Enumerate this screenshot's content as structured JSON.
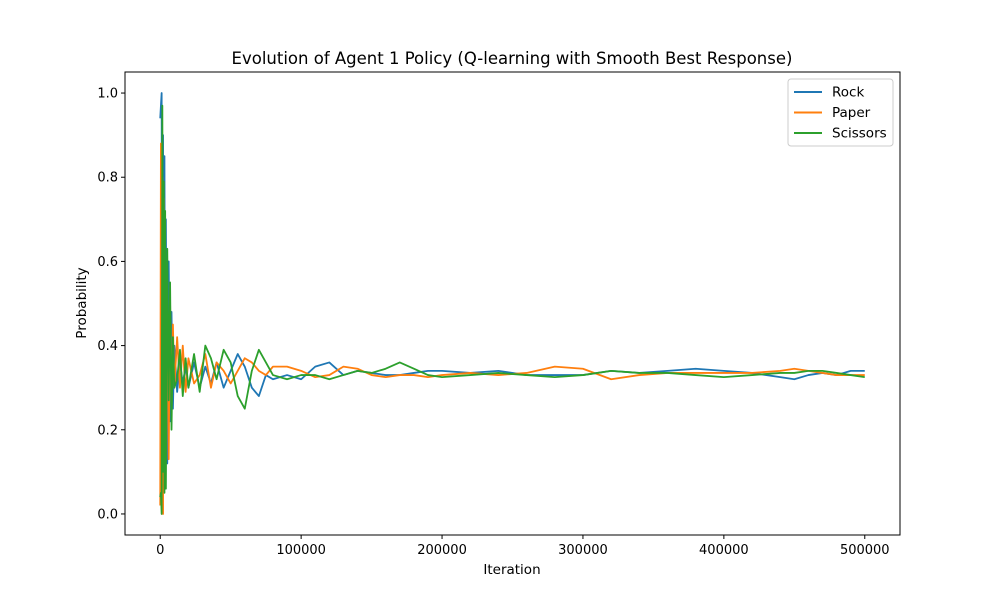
{
  "chart_data": {
    "type": "line",
    "title": "Evolution of Agent 1 Policy (Q-learning with Smooth Best Response)",
    "xlabel": "Iteration",
    "ylabel": "Probability",
    "xlim": [
      -25000,
      525000
    ],
    "ylim": [
      -0.05,
      1.05
    ],
    "xticks": [
      0,
      100000,
      200000,
      300000,
      400000,
      500000
    ],
    "xtick_labels": [
      "0",
      "100000",
      "200000",
      "300000",
      "400000",
      "500000"
    ],
    "yticks": [
      0.0,
      0.2,
      0.4,
      0.6,
      0.8,
      1.0
    ],
    "ytick_labels": [
      "0.0",
      "0.2",
      "0.4",
      "0.6",
      "0.8",
      "1.0"
    ],
    "grid": false,
    "legend": "top-right",
    "series": [
      {
        "name": "Rock",
        "color": "#1f77b4",
        "x": [
          0,
          500,
          1000,
          1500,
          2000,
          2500,
          3000,
          3500,
          4000,
          5000,
          6000,
          7000,
          8000,
          9000,
          10000,
          12000,
          14000,
          16000,
          18000,
          20000,
          24000,
          28000,
          32000,
          36000,
          40000,
          45000,
          50000,
          55000,
          60000,
          65000,
          70000,
          75000,
          80000,
          90000,
          100000,
          110000,
          120000,
          130000,
          140000,
          150000,
          160000,
          170000,
          180000,
          190000,
          200000,
          220000,
          240000,
          260000,
          280000,
          300000,
          320000,
          340000,
          360000,
          380000,
          400000,
          420000,
          440000,
          450000,
          460000,
          470000,
          480000,
          490000,
          500000
        ],
        "values": [
          0.94,
          0.97,
          1.0,
          0.05,
          0.9,
          0.1,
          0.85,
          0.2,
          0.7,
          0.12,
          0.6,
          0.22,
          0.48,
          0.25,
          0.4,
          0.29,
          0.36,
          0.31,
          0.35,
          0.3,
          0.36,
          0.3,
          0.35,
          0.31,
          0.36,
          0.3,
          0.34,
          0.38,
          0.35,
          0.3,
          0.28,
          0.33,
          0.32,
          0.33,
          0.32,
          0.35,
          0.36,
          0.33,
          0.34,
          0.335,
          0.33,
          0.33,
          0.335,
          0.34,
          0.34,
          0.335,
          0.34,
          0.33,
          0.33,
          0.33,
          0.34,
          0.335,
          0.34,
          0.345,
          0.34,
          0.335,
          0.325,
          0.32,
          0.33,
          0.335,
          0.33,
          0.34,
          0.34
        ]
      },
      {
        "name": "Paper",
        "color": "#ff7f0e",
        "x": [
          0,
          500,
          1000,
          1500,
          2000,
          2500,
          3000,
          3500,
          4000,
          5000,
          6000,
          7000,
          8000,
          9000,
          10000,
          12000,
          14000,
          16000,
          18000,
          20000,
          24000,
          28000,
          32000,
          36000,
          40000,
          45000,
          50000,
          55000,
          60000,
          65000,
          70000,
          75000,
          80000,
          90000,
          100000,
          110000,
          120000,
          130000,
          140000,
          150000,
          160000,
          170000,
          180000,
          190000,
          200000,
          220000,
          240000,
          260000,
          280000,
          300000,
          320000,
          340000,
          360000,
          380000,
          400000,
          420000,
          440000,
          450000,
          460000,
          470000,
          480000,
          490000,
          500000
        ],
        "values": [
          0.02,
          0.88,
          0.1,
          0.8,
          0.0,
          0.75,
          0.15,
          0.6,
          0.25,
          0.55,
          0.13,
          0.5,
          0.24,
          0.45,
          0.3,
          0.42,
          0.3,
          0.4,
          0.29,
          0.37,
          0.31,
          0.33,
          0.38,
          0.3,
          0.36,
          0.34,
          0.31,
          0.34,
          0.37,
          0.36,
          0.34,
          0.33,
          0.35,
          0.35,
          0.34,
          0.325,
          0.33,
          0.35,
          0.345,
          0.33,
          0.325,
          0.33,
          0.33,
          0.325,
          0.33,
          0.335,
          0.33,
          0.335,
          0.35,
          0.345,
          0.32,
          0.33,
          0.335,
          0.335,
          0.335,
          0.335,
          0.34,
          0.345,
          0.34,
          0.335,
          0.33,
          0.33,
          0.33
        ]
      },
      {
        "name": "Scissors",
        "color": "#2ca02c",
        "x": [
          0,
          500,
          1000,
          1500,
          2000,
          2500,
          3000,
          3500,
          4000,
          5000,
          6000,
          7000,
          8000,
          9000,
          10000,
          12000,
          14000,
          16000,
          18000,
          20000,
          24000,
          28000,
          32000,
          36000,
          40000,
          45000,
          50000,
          55000,
          60000,
          65000,
          70000,
          75000,
          80000,
          90000,
          100000,
          110000,
          120000,
          130000,
          140000,
          150000,
          160000,
          170000,
          180000,
          190000,
          200000,
          220000,
          240000,
          260000,
          280000,
          300000,
          320000,
          340000,
          360000,
          380000,
          400000,
          420000,
          440000,
          450000,
          460000,
          470000,
          480000,
          490000,
          500000
        ],
        "values": [
          0.04,
          0.05,
          0.0,
          0.97,
          0.1,
          0.79,
          0.05,
          0.72,
          0.06,
          0.63,
          0.27,
          0.55,
          0.2,
          0.42,
          0.3,
          0.32,
          0.39,
          0.28,
          0.37,
          0.3,
          0.38,
          0.29,
          0.4,
          0.37,
          0.32,
          0.39,
          0.36,
          0.28,
          0.25,
          0.34,
          0.39,
          0.36,
          0.33,
          0.32,
          0.33,
          0.33,
          0.32,
          0.33,
          0.34,
          0.335,
          0.345,
          0.36,
          0.345,
          0.33,
          0.325,
          0.33,
          0.335,
          0.33,
          0.325,
          0.33,
          0.34,
          0.335,
          0.335,
          0.33,
          0.325,
          0.33,
          0.335,
          0.335,
          0.34,
          0.34,
          0.335,
          0.33,
          0.325
        ]
      }
    ]
  }
}
